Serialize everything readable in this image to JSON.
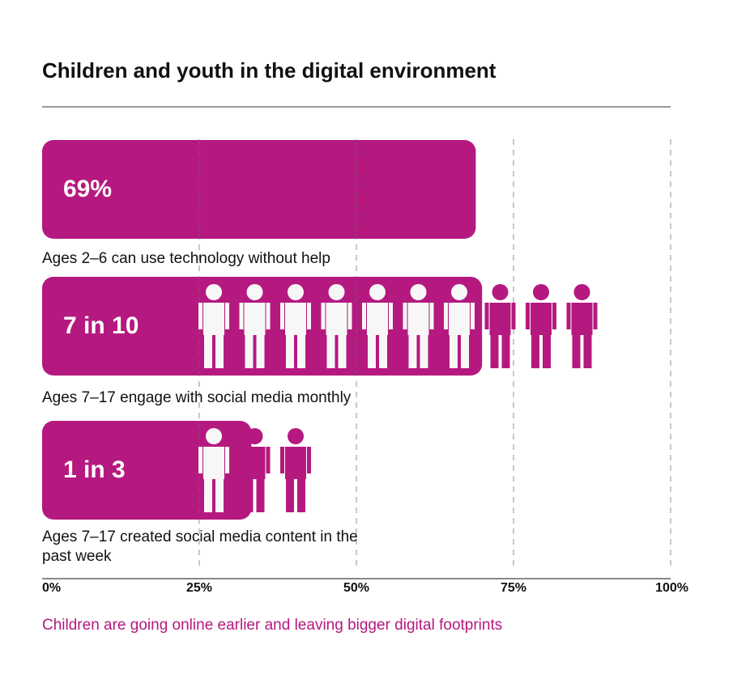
{
  "chart_data": {
    "type": "bar",
    "orientation": "horizontal",
    "title": "Children and youth in the digital environment",
    "categories": [
      "Ages 2–6 can use technology without help",
      "Ages 7–17 engage with social media monthly",
      "Ages 7–17 created social media content in the past week"
    ],
    "values": [
      69,
      70,
      33.3
    ],
    "value_labels": [
      "69%",
      "7 in 10",
      "1 in 3"
    ],
    "icons_filled": [
      null,
      7,
      1
    ],
    "icons_total": [
      null,
      10,
      3
    ],
    "color": "#b5197f",
    "xlim": [
      0,
      100
    ],
    "xticks": [
      {
        "value": 0,
        "label": "0%"
      },
      {
        "value": 25,
        "label": "25%"
      },
      {
        "value": 50,
        "label": "50%"
      },
      {
        "value": 75,
        "label": "75%"
      },
      {
        "value": 100,
        "label": "100%"
      }
    ],
    "grid": true,
    "footnote": "Children are going online earlier and leaving bigger digital footprints"
  }
}
